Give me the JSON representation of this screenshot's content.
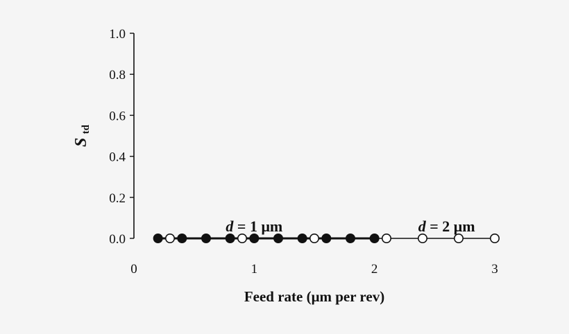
{
  "chart_data": {
    "type": "scatter",
    "title": "",
    "xlabel": "Feed rate (μm per rev)",
    "ylabel": "S",
    "ylabel_subscript": "td",
    "xlim": [
      0,
      3
    ],
    "ylim": [
      0,
      1.0
    ],
    "x_ticks": [
      0,
      1,
      2,
      3
    ],
    "x_tick_labels": [
      "0",
      "1",
      "2",
      "3"
    ],
    "y_ticks": [
      0,
      0.2,
      0.4,
      0.6,
      0.8,
      1.0
    ],
    "y_tick_labels": [
      "0.0",
      "0.2",
      "0.4",
      "0.6",
      "0.8",
      "1.0"
    ],
    "grid": false,
    "legend": "none",
    "series": [
      {
        "marker": "filled-circle",
        "line_width": "thick",
        "color": "#111111",
        "x": [
          0.2,
          0.4,
          0.6,
          0.8,
          1.0,
          1.2,
          1.4,
          1.6,
          1.8,
          2.0
        ],
        "y": [
          0,
          0,
          0,
          0,
          0,
          0,
          0,
          0,
          0,
          0
        ]
      },
      {
        "marker": "open-circle",
        "line_width": "thin",
        "color": "#111111",
        "x": [
          0.3,
          0.9,
          1.5,
          2.1,
          2.4,
          2.7,
          3.0
        ],
        "y": [
          0,
          0,
          0,
          0,
          0,
          0,
          0
        ]
      }
    ],
    "annotations": [
      {
        "prefix": "d",
        "text": " = 1 μm",
        "x": 1.0,
        "y": 0.0
      },
      {
        "prefix": "d",
        "text": " = 2 μm",
        "x": 2.6,
        "y": 0.0
      }
    ]
  }
}
